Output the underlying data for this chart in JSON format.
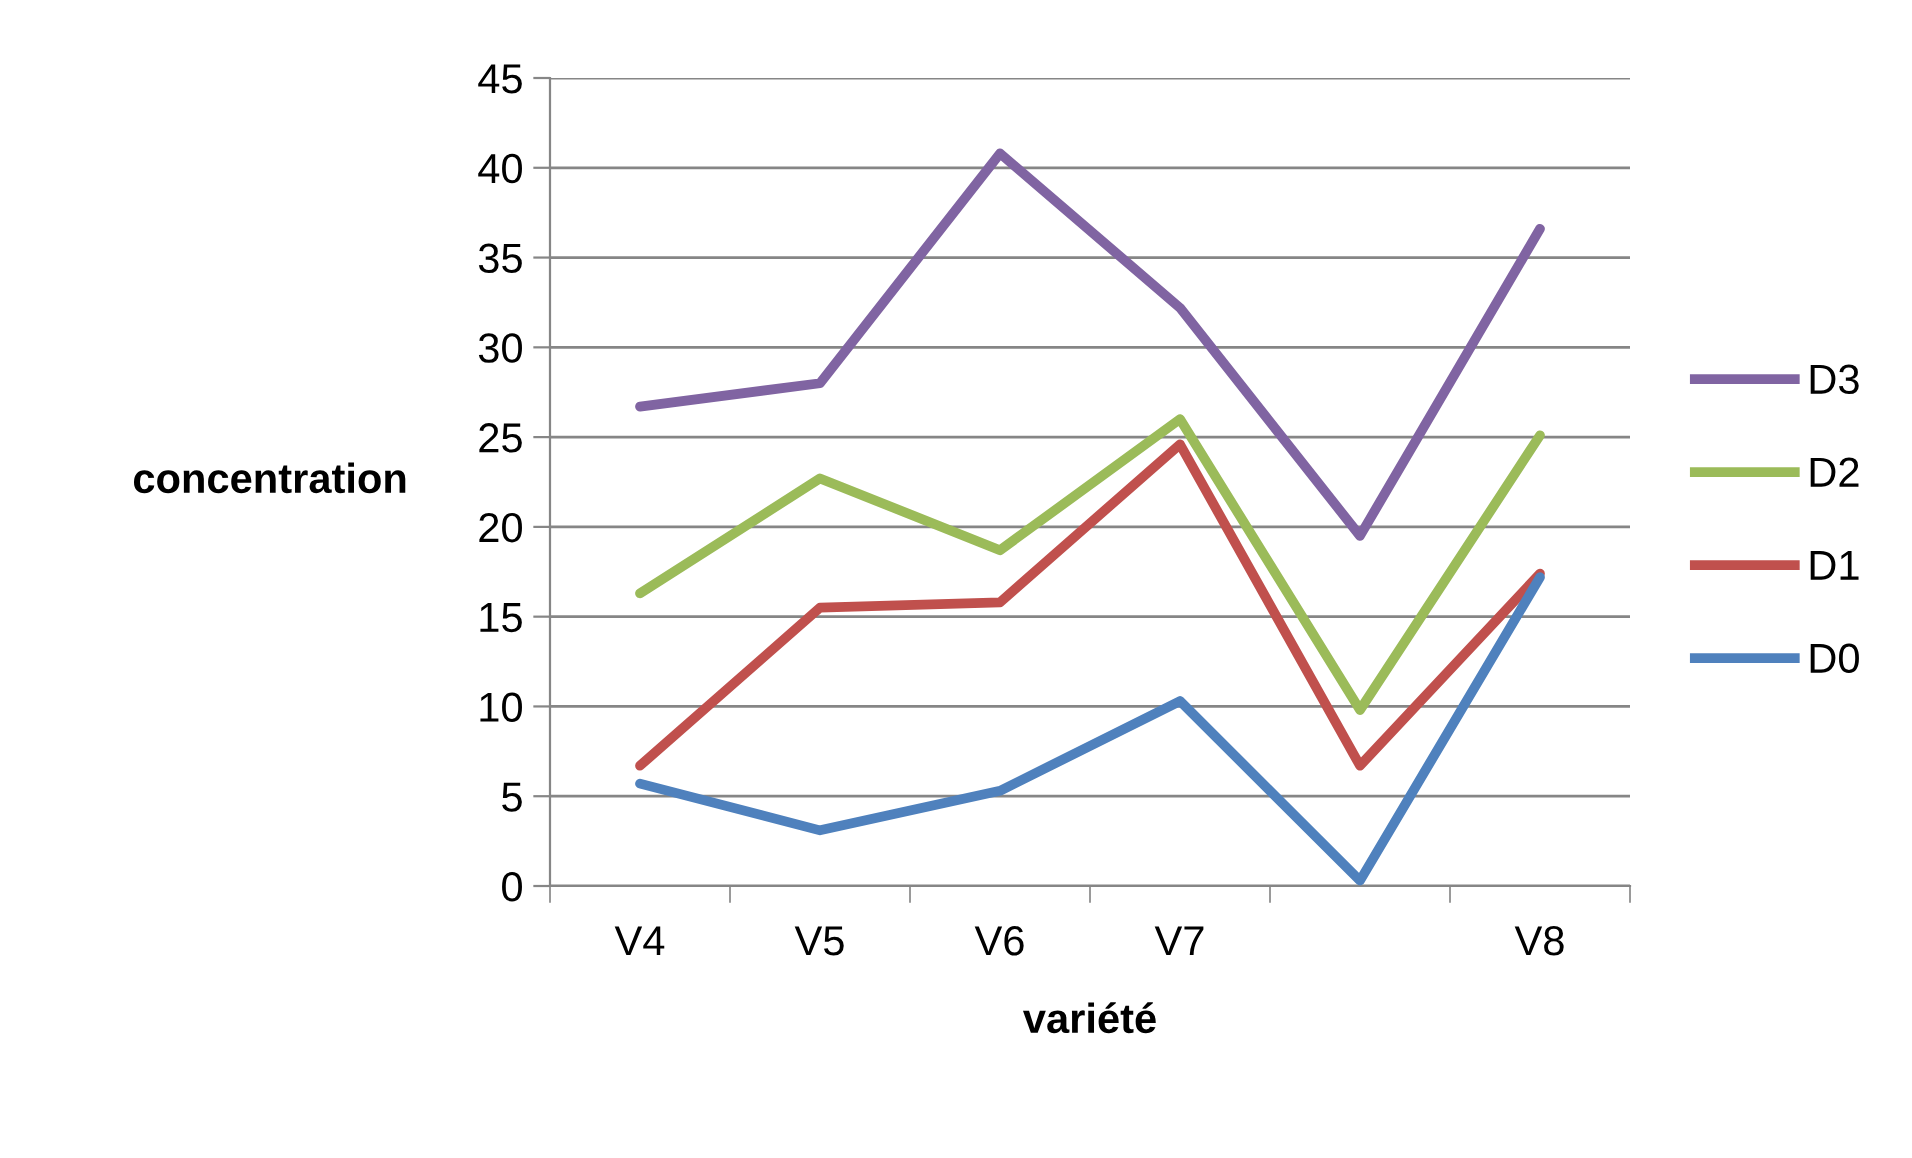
{
  "chart_data": {
    "type": "line",
    "xlabel": "variété",
    "ylabel": "concentration",
    "categories": [
      "V4",
      "V5",
      "V6",
      "V7",
      null,
      "V8"
    ],
    "series": [
      {
        "name": "D3",
        "color": "#8064a2",
        "values": [
          26.7,
          28.0,
          40.8,
          32.2,
          19.5,
          36.6
        ]
      },
      {
        "name": "D2",
        "color": "#9bbb59",
        "values": [
          16.3,
          22.7,
          18.7,
          26.0,
          9.8,
          25.1
        ]
      },
      {
        "name": "D1",
        "color": "#c0504d",
        "values": [
          6.7,
          15.5,
          15.8,
          24.6,
          6.7,
          17.4
        ]
      },
      {
        "name": "D0",
        "color": "#4f81bd",
        "values": [
          5.7,
          3.1,
          5.3,
          10.3,
          0.3,
          17.2
        ]
      }
    ],
    "ylim": [
      0,
      45
    ],
    "yticks": [
      0,
      5,
      10,
      15,
      20,
      25,
      30,
      35,
      40,
      45
    ],
    "grid": "y",
    "legend": "right",
    "marker": "none",
    "line_style": "solid"
  }
}
